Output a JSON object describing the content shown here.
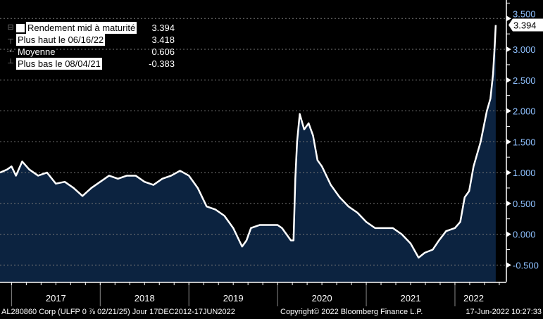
{
  "chart_data": {
    "type": "area",
    "title": "",
    "series": [
      {
        "name": "Rendement mid à maturité",
        "color": "#ffffff",
        "fill": "#0c2340",
        "x": [
          2016.87,
          2016.95,
          2017.0,
          2017.05,
          2017.12,
          2017.2,
          2017.3,
          2017.4,
          2017.5,
          2017.6,
          2017.7,
          2017.8,
          2017.9,
          2018.0,
          2018.1,
          2018.2,
          2018.3,
          2018.4,
          2018.5,
          2018.6,
          2018.7,
          2018.8,
          2018.9,
          2019.0,
          2019.1,
          2019.2,
          2019.3,
          2019.4,
          2019.5,
          2019.55,
          2019.6,
          2019.65,
          2019.7,
          2019.8,
          2019.9,
          2020.0,
          2020.05,
          2020.1,
          2020.15,
          2020.18,
          2020.2,
          2020.22,
          2020.25,
          2020.3,
          2020.35,
          2020.4,
          2020.45,
          2020.5,
          2020.6,
          2020.7,
          2020.8,
          2020.9,
          2021.0,
          2021.1,
          2021.2,
          2021.3,
          2021.4,
          2021.5,
          2021.59,
          2021.66,
          2021.75,
          2021.82,
          2021.9,
          2022.0,
          2022.06,
          2022.11,
          2022.16,
          2022.21,
          2022.29,
          2022.36,
          2022.4,
          2022.43,
          2022.45,
          2022.46
        ],
        "y": [
          1.0,
          1.05,
          1.1,
          0.95,
          1.18,
          1.05,
          0.95,
          1.0,
          0.82,
          0.85,
          0.75,
          0.62,
          0.75,
          0.85,
          0.95,
          0.9,
          0.95,
          0.95,
          0.85,
          0.8,
          0.9,
          0.95,
          1.03,
          0.95,
          0.75,
          0.45,
          0.4,
          0.3,
          0.1,
          -0.05,
          -0.2,
          -0.1,
          0.1,
          0.15,
          0.15,
          0.15,
          0.1,
          0.0,
          -0.1,
          -0.1,
          0.9,
          1.5,
          1.95,
          1.7,
          1.8,
          1.6,
          1.2,
          1.1,
          0.8,
          0.6,
          0.45,
          0.35,
          0.2,
          0.1,
          0.1,
          0.1,
          0.0,
          -0.15,
          -0.38,
          -0.3,
          -0.25,
          -0.1,
          0.05,
          0.1,
          0.2,
          0.6,
          0.7,
          1.1,
          1.5,
          2.0,
          2.2,
          2.6,
          3.1,
          3.394
        ]
      }
    ],
    "yticks": [
      "-0.500",
      "0.000",
      "0.500",
      "1.000",
      "1.500",
      "2.000",
      "2.500",
      "3.000",
      "3.500"
    ],
    "yvalues": [
      -0.5,
      0,
      0.5,
      1,
      1.5,
      2,
      2.5,
      3,
      3.5
    ],
    "ylim": [
      -0.77,
      3.8
    ],
    "xlim": [
      2016.87,
      2022.58
    ],
    "xtick_labels": [
      "2017",
      "2018",
      "2019",
      "2020",
      "2021",
      "2022"
    ],
    "last_value_label": "3.394",
    "legend": [
      {
        "label": "Rendement mid à maturité",
        "value": "3.394"
      },
      {
        "label": "Plus haut le 06/16/22",
        "value": "3.418"
      },
      {
        "label": "Moyenne",
        "value": "0.606"
      },
      {
        "label": "Plus bas le 08/04/21",
        "value": "-0.383"
      }
    ],
    "grid": true,
    "legend_position": "top-left"
  },
  "footer": {
    "security": "AL280860 Corp (ULFP 0 ⅞ 02/21/25)  Jour 17DEC2012-17JUN2022",
    "copyright": "Copyright© 2022 Bloomberg Finance L.P.",
    "timestamp": "17-Jun-2022 10:27:33"
  }
}
